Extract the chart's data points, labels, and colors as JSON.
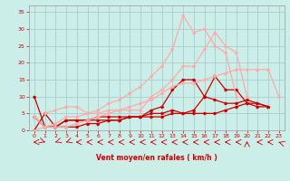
{
  "xlabel": "Vent moyen/en rafales ( km/h )",
  "bg_color": "#cceee8",
  "grid_color": "#aacccc",
  "dc": "#cc0000",
  "lc": "#ff8888",
  "xlim": [
    -0.5,
    23.5
  ],
  "ylim": [
    0,
    37
  ],
  "xticks": [
    0,
    1,
    2,
    3,
    4,
    5,
    6,
    7,
    8,
    9,
    10,
    11,
    12,
    13,
    14,
    15,
    16,
    17,
    18,
    19,
    20,
    21,
    22,
    23
  ],
  "yticks": [
    0,
    5,
    10,
    15,
    20,
    25,
    30,
    35
  ],
  "lines": [
    {
      "x": [
        0,
        1,
        2,
        3,
        4,
        5,
        6,
        7,
        8,
        9,
        10,
        11,
        12,
        13,
        14,
        15,
        16,
        17,
        18,
        19,
        20,
        21,
        22
      ],
      "y": [
        4,
        1,
        1,
        3,
        3,
        3,
        3,
        3,
        3,
        4,
        4,
        5,
        5,
        6,
        5,
        6,
        10,
        9,
        8,
        8,
        9,
        8,
        7
      ],
      "color": "#cc0000",
      "lw": 0.9
    },
    {
      "x": [
        0,
        1,
        2,
        3,
        4,
        5,
        6,
        7,
        8,
        9,
        10,
        11,
        12,
        13,
        14,
        15,
        16,
        17,
        18,
        19,
        20,
        21,
        22
      ],
      "y": [
        0,
        5,
        1,
        1,
        1,
        2,
        2,
        3,
        3,
        4,
        4,
        6,
        7,
        12,
        15,
        15,
        10,
        16,
        12,
        12,
        8,
        7,
        7
      ],
      "color": "#cc0000",
      "lw": 0.9
    },
    {
      "x": [
        0,
        1,
        2,
        3,
        4,
        5,
        6,
        7,
        8,
        9,
        10,
        11,
        12,
        13,
        14,
        15,
        16,
        17,
        18,
        19,
        20,
        21,
        22
      ],
      "y": [
        10,
        1,
        1,
        3,
        3,
        3,
        4,
        4,
        4,
        4,
        4,
        4,
        4,
        5,
        5,
        5,
        5,
        5,
        6,
        7,
        8,
        8,
        7
      ],
      "color": "#cc0000",
      "lw": 0.9
    },
    {
      "x": [
        1,
        2,
        3,
        4,
        5,
        6,
        7,
        8,
        9,
        10,
        11,
        12,
        13,
        14,
        15,
        16,
        17,
        18,
        19,
        20
      ],
      "y": [
        5,
        6,
        7,
        7,
        5,
        5,
        6,
        6,
        6,
        6,
        10,
        12,
        15,
        19,
        19,
        24,
        29,
        25,
        23,
        10
      ],
      "color": "#ffaaaa",
      "lw": 0.9
    },
    {
      "x": [
        0,
        1,
        2,
        3,
        4,
        5,
        6,
        7,
        8,
        9,
        10,
        11,
        12,
        13,
        14,
        15,
        16,
        17,
        18,
        19
      ],
      "y": [
        4,
        1,
        2,
        4,
        4,
        5,
        6,
        8,
        9,
        11,
        13,
        16,
        19,
        24,
        34,
        29,
        30,
        25,
        23,
        10
      ],
      "color": "#ffaaaa",
      "lw": 0.9
    },
    {
      "x": [
        0,
        1,
        2,
        3,
        4,
        5,
        6,
        7,
        8,
        9,
        10,
        11,
        12,
        13,
        14,
        15,
        16,
        17,
        18,
        19,
        20,
        21,
        22,
        23
      ],
      "y": [
        0,
        1,
        1,
        1,
        2,
        3,
        4,
        5,
        6,
        7,
        8,
        9,
        11,
        13,
        14,
        14,
        15,
        16,
        17,
        18,
        18,
        18,
        18,
        10
      ],
      "color": "#ffaaaa",
      "lw": 0.9
    }
  ],
  "arrows_x": [
    0,
    1,
    2,
    3,
    4,
    5,
    6,
    7,
    8,
    9,
    10,
    11,
    12,
    13,
    14,
    15,
    16,
    17,
    18,
    19,
    20,
    21,
    22,
    23
  ],
  "arrow_angles": [
    270,
    45,
    315,
    315,
    270,
    270,
    270,
    270,
    270,
    270,
    270,
    270,
    270,
    270,
    270,
    270,
    270,
    270,
    270,
    270,
    180,
    270,
    270,
    225
  ]
}
